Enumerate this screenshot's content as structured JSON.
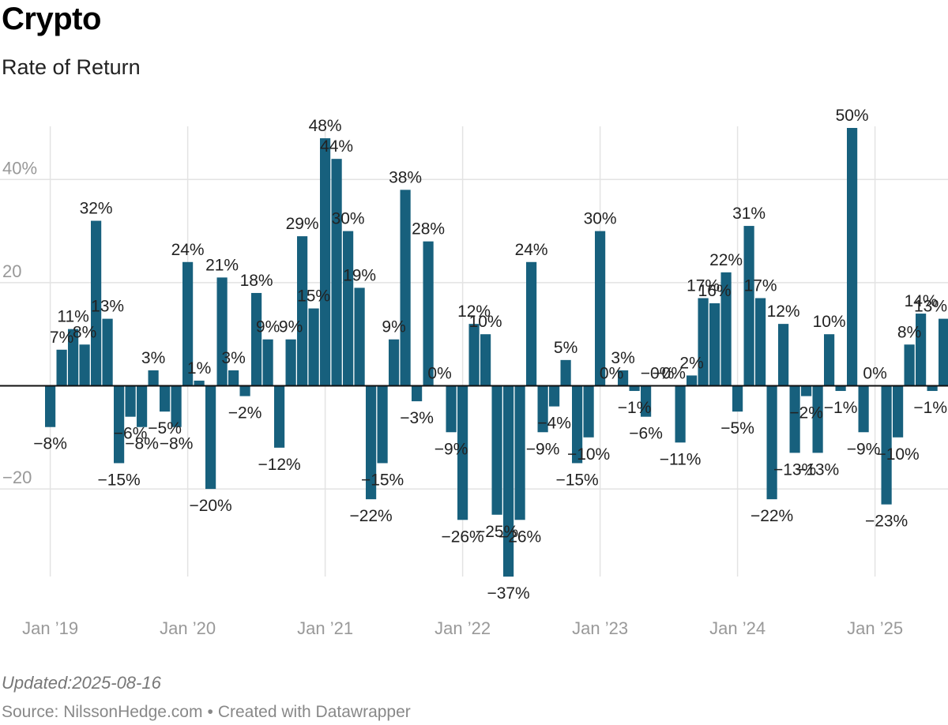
{
  "header": {
    "title": "Crypto",
    "subtitle": "Rate of Return"
  },
  "footer": {
    "updated_label": "Updated:",
    "updated_date": "2025-08-16",
    "source_label": "Source: ",
    "source_name": "NilssonHedge.com",
    "separator": "•",
    "created_with": "Created with Datawrapper"
  },
  "colors": {
    "bar": "#17607d",
    "grid": "#e3e3e3",
    "zero_line": "#111111",
    "tick_text": "#999999",
    "label_text": "#222222"
  },
  "chart_data": {
    "type": "bar",
    "title": "Crypto",
    "subtitle": "Rate of Return",
    "xlabel": "",
    "ylabel": "",
    "ylim": [
      -37,
      50
    ],
    "yticks": [
      {
        "value": 40,
        "label": "40%"
      },
      {
        "value": 20,
        "label": "20"
      },
      {
        "value": -20,
        "label": "−20"
      }
    ],
    "xticks": [
      {
        "index": 0,
        "label": "Jan ’19"
      },
      {
        "index": 12,
        "label": "Jan ’20"
      },
      {
        "index": 24,
        "label": "Jan ’21"
      },
      {
        "index": 36,
        "label": "Jan ’22"
      },
      {
        "index": 48,
        "label": "Jan ’23"
      },
      {
        "index": 60,
        "label": "Jan ’24"
      },
      {
        "index": 72,
        "label": "Jan ’25"
      }
    ],
    "grid": true,
    "start_month": "2019-01",
    "series": [
      {
        "values": [
          -8,
          7,
          11,
          8,
          32,
          13,
          -15,
          -6,
          -8,
          3,
          -5,
          -8,
          24,
          1,
          -20,
          21,
          3,
          -2,
          18,
          9,
          -12,
          9,
          29,
          15,
          48,
          44,
          30,
          19,
          -22,
          -15,
          9,
          38,
          -3,
          28,
          0,
          -9,
          -26,
          12,
          10,
          -25,
          -37,
          -26,
          24,
          -9,
          -4,
          5,
          -15,
          -10,
          30,
          0,
          3,
          -1,
          -6,
          0,
          0,
          -11,
          2,
          17,
          16,
          22,
          -5,
          31,
          17,
          -22,
          12,
          -13,
          -2,
          -13,
          10,
          -1,
          50,
          -9,
          0,
          -23,
          -10,
          8,
          14,
          -1,
          13
        ]
      }
    ],
    "value_labels": [
      "−8%",
      "7%",
      "11%",
      "8%",
      "32%",
      "13%",
      "−15%",
      "−6%",
      "−8%",
      "3%",
      "−5%",
      "−8%",
      "24%",
      "1%",
      "−20%",
      "21%",
      "3%",
      "−2%",
      "18%",
      "9%",
      "−12%",
      "9%",
      "29%",
      "15%",
      "48%",
      "44%",
      "30%",
      "19%",
      "−22%",
      "−15%",
      "9%",
      "38%",
      "−3%",
      "28%",
      "0%",
      "−9%",
      "−26%",
      "12%",
      "10%",
      "−25%",
      "−37%",
      "−26%",
      "24%",
      "−9%",
      "−4%",
      "5%",
      "−15%",
      "−10%",
      "30%",
      "0%",
      "3%",
      "−1%",
      "−6%",
      "−0%",
      "−0%",
      "−11%",
      "2%",
      "17%",
      "16%",
      "22%",
      "−5%",
      "31%",
      "17%",
      "−22%",
      "12%",
      "−13%",
      "−2%",
      "−13%",
      "10%",
      "−1%",
      "50%",
      "−9%",
      "0%",
      "−23%",
      "−10%",
      "8%",
      "14%",
      "−1%",
      "13%"
    ]
  }
}
